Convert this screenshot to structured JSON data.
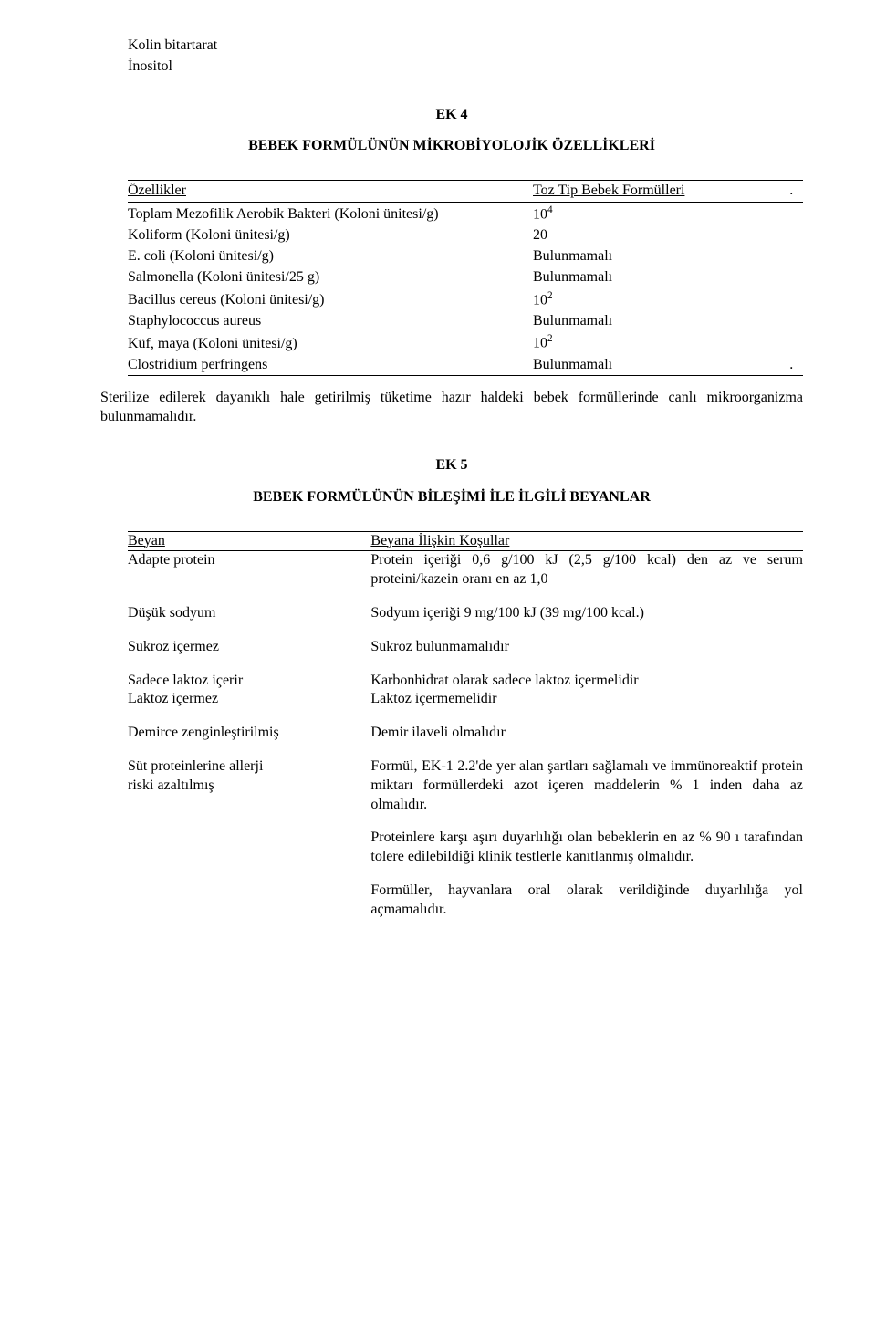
{
  "top_lines": [
    "Kolin bitartarat",
    "İnositol"
  ],
  "ek4": {
    "heading": "EK 4",
    "subtitle": "BEBEK FORMÜLÜNÜN MİKROBİYOLOJİK ÖZELLİKLERİ",
    "header_left": "Özellikler",
    "header_right": "Toz Tip Bebek Formülleri",
    "dot": ".",
    "rows": [
      {
        "l": "Toplam Mezofilik Aerobik Bakteri (Koloni ünitesi/g)",
        "r_base": "10",
        "r_sup": "4"
      },
      {
        "l": "Koliform (Koloni ünitesi/g)",
        "r": "20"
      },
      {
        "l": "E. coli (Koloni ünitesi/g)",
        "r": "Bulunmamalı"
      },
      {
        "l": "Salmonella (Koloni ünitesi/25 g)",
        "r": "Bulunmamalı"
      },
      {
        "l": "Bacillus cereus (Koloni ünitesi/g)",
        "r_base": "10",
        "r_sup": "2"
      },
      {
        "l": "Staphylococcus aureus",
        "r": "Bulunmamalı"
      },
      {
        "l": "Küf, maya (Koloni ünitesi/g)",
        "r_base": "10",
        "r_sup": "2"
      },
      {
        "l": "Clostridium perfringens",
        "r": "Bulunmamalı"
      }
    ],
    "paragraph": "Sterilize edilerek dayanıklı hale getirilmiş tüketime hazır haldeki bebek formüllerinde canlı mikroorganizma bulunmamalıdır."
  },
  "ek5": {
    "heading": "EK 5",
    "subtitle": "BEBEK FORMÜLÜNÜN BİLEŞİMİ İLE İLGİLİ BEYANLAR",
    "header_left": "Beyan",
    "header_right": "Beyana İlişkin Koşullar",
    "rows": [
      {
        "l": "Adapte protein",
        "r": "Protein içeriği 0,6 g/100 kJ (2,5 g/100 kcal) den az ve serum proteini/kazein oranı en az 1,0"
      },
      {
        "l": "Düşük sodyum",
        "r": "Sodyum içeriği 9 mg/100 kJ (39 mg/100 kcal.)"
      },
      {
        "l": "Sukroz içermez",
        "r": "Sukroz bulunmamalıdır"
      },
      {
        "l": "Sadece laktoz içerir\nLaktoz içermez",
        "r": "Karbonhidrat olarak sadece laktoz içermelidir\nLaktoz içermemelidir"
      },
      {
        "l": "Demirce zenginleştirilmiş",
        "r": "Demir ilaveli olmalıdır"
      },
      {
        "l": "Süt proteinlerine allerji\nriski azaltılmış",
        "r": "Formül, EK-1  2.2'de yer alan şartları sağlamalı ve immünoreaktif protein miktarı formüllerdeki azot içeren maddelerin % 1 inden daha az olmalıdır."
      }
    ],
    "extra_paras": [
      "Proteinlere karşı aşırı duyarlılığı olan bebeklerin en az % 90 ı tarafından tolere edilebildiği klinik testlerle kanıtlanmış olmalıdır.",
      "Formüller, hayvanlara oral olarak verildiğinde duyarlılığa yol açmamalıdır."
    ]
  }
}
